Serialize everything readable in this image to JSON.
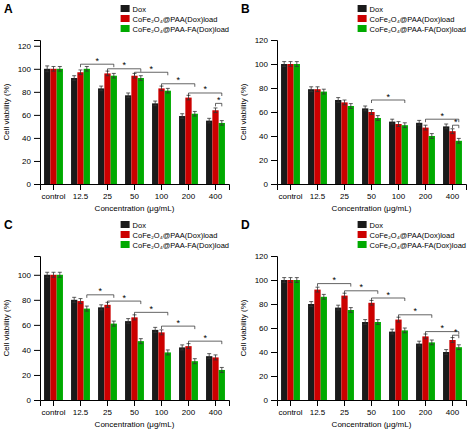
{
  "chart_data": [
    {
      "type": "bar",
      "title": "A",
      "ylabel": "Cell viability (%)",
      "xlabel": "Concentration (μg/mL)",
      "categories": [
        "control",
        "12.5",
        "25",
        "50",
        "100",
        "200",
        "400"
      ],
      "ylim": [
        0,
        125
      ],
      "yticks": [
        0,
        20,
        40,
        60,
        80,
        100,
        120
      ],
      "grid": false,
      "legend": "upper right",
      "series": [
        {
          "name": "Dox",
          "color": "#1a1a1a",
          "values": [
            100,
            92,
            83,
            77,
            70,
            59,
            55
          ],
          "errors": [
            2.5,
            2,
            2,
            2,
            2,
            2,
            2
          ]
        },
        {
          "name": "CoFe₂O₄@PAA(Dox)load",
          "color": "#cc0000",
          "values": [
            100,
            97,
            96,
            94,
            83,
            75,
            64
          ],
          "errors": [
            2,
            2,
            2,
            2,
            2,
            2,
            2
          ]
        },
        {
          "name": "CoFe₂O₄@PAA-FA(Dox)load",
          "color": "#00aa00",
          "values": [
            100,
            100,
            94,
            92,
            81,
            61,
            53
          ],
          "errors": [
            2,
            2,
            2,
            2,
            2,
            2,
            2
          ]
        }
      ],
      "annotations": [
        {
          "label": "*",
          "y": 104,
          "from_series": "CoFe₂O₄@PAA(Dox)load",
          "from_category": "12.5",
          "to_series": "CoFe₂O₄@PAA-FA(Dox)load",
          "to_category": "25"
        },
        {
          "label": "*",
          "y": 100,
          "from_series": "CoFe₂O₄@PAA(Dox)load",
          "from_category": "25",
          "to_series": "CoFe₂O₄@PAA-FA(Dox)load",
          "to_category": "50"
        },
        {
          "label": "*",
          "y": 97,
          "from_series": "CoFe₂O₄@PAA(Dox)load",
          "from_category": "50",
          "to_series": "CoFe₂O₄@PAA-FA(Dox)load",
          "to_category": "100"
        },
        {
          "label": "*",
          "y": 87,
          "from_series": "CoFe₂O₄@PAA(Dox)load",
          "from_category": "100",
          "to_series": "CoFe₂O₄@PAA-FA(Dox)load",
          "to_category": "200"
        },
        {
          "label": "*",
          "y": 79,
          "from_series": "CoFe₂O₄@PAA(Dox)load",
          "from_category": "200",
          "to_series": "CoFe₂O₄@PAA-FA(Dox)load",
          "to_category": "400"
        },
        {
          "label": "*",
          "y": 70,
          "from_series": "CoFe₂O₄@PAA(Dox)load",
          "from_category": "400",
          "to_series": "CoFe₂O₄@PAA-FA(Dox)load",
          "to_category": "400"
        }
      ]
    },
    {
      "type": "bar",
      "title": "B",
      "ylabel": "Cell viability (%)",
      "xlabel": "Concentration (μg/mL)",
      "categories": [
        "control",
        "12.5",
        "25",
        "50",
        "100",
        "200",
        "400"
      ],
      "ylim": [
        0,
        120
      ],
      "yticks": [
        0,
        20,
        40,
        60,
        80,
        100,
        120
      ],
      "grid": false,
      "legend": "upper right",
      "series": [
        {
          "name": "Dox",
          "color": "#1a1a1a",
          "values": [
            100,
            79,
            70,
            63,
            52,
            51,
            48
          ],
          "errors": [
            2,
            2,
            2,
            2,
            2,
            2,
            2
          ]
        },
        {
          "name": "CoFe₂O₄@PAA(Dox)load",
          "color": "#cc0000",
          "values": [
            100,
            79,
            68,
            60,
            50,
            47,
            44
          ],
          "errors": [
            2,
            2,
            2,
            2,
            2,
            2,
            2
          ]
        },
        {
          "name": "CoFe₂O₄@PAA-FA(Dox)load",
          "color": "#00aa00",
          "values": [
            100,
            77,
            65,
            55,
            49,
            40,
            36
          ],
          "errors": [
            2,
            2,
            2,
            2,
            2,
            2,
            2
          ]
        }
      ],
      "annotations": [
        {
          "label": "*",
          "y": 70,
          "from_series": "CoFe₂O₄@PAA(Dox)load",
          "from_category": "50",
          "to_series": "CoFe₂O₄@PAA-FA(Dox)load",
          "to_category": "100"
        },
        {
          "label": "*",
          "y": 54,
          "from_series": "CoFe₂O₄@PAA(Dox)load",
          "from_category": "200",
          "to_series": "CoFe₂O₄@PAA-FA(Dox)load",
          "to_category": "400"
        },
        {
          "label": "*",
          "y": 49,
          "from_series": "CoFe₂O₄@PAA(Dox)load",
          "from_category": "400",
          "to_series": "CoFe₂O₄@PAA-FA(Dox)load",
          "to_category": "400"
        }
      ]
    },
    {
      "type": "bar",
      "title": "C",
      "ylabel": "Cell viability (%)",
      "xlabel": "Concentration (μg/mL)",
      "categories": [
        "control",
        "12.5",
        "25",
        "50",
        "100",
        "200",
        "400"
      ],
      "ylim": [
        0,
        115
      ],
      "yticks": [
        0,
        20,
        40,
        60,
        80,
        100
      ],
      "grid": false,
      "legend": "upper right",
      "series": [
        {
          "name": "Dox",
          "color": "#1a1a1a",
          "values": [
            100,
            80,
            74,
            63,
            56,
            42,
            35
          ],
          "errors": [
            2,
            2,
            2,
            2,
            2,
            2,
            2
          ]
        },
        {
          "name": "CoFe₂O₄@PAA(Dox)load",
          "color": "#cc0000",
          "values": [
            100,
            79,
            76,
            66,
            54,
            43,
            34
          ],
          "errors": [
            2,
            2,
            2,
            2,
            2,
            2,
            2
          ]
        },
        {
          "name": "CoFe₂O₄@PAA-FA(Dox)load",
          "color": "#00aa00",
          "values": [
            100,
            73,
            61,
            47,
            38,
            31,
            24
          ],
          "errors": [
            2,
            2,
            2,
            2,
            2,
            2,
            2
          ]
        }
      ],
      "annotations": [
        {
          "label": "*",
          "y": 84,
          "from_series": "CoFe₂O₄@PAA-FA(Dox)load",
          "from_category": "12.5",
          "to_series": "CoFe₂O₄@PAA-FA(Dox)load",
          "to_category": "25"
        },
        {
          "label": "*",
          "y": 79,
          "from_series": "CoFe₂O₄@PAA(Dox)load",
          "from_category": "25",
          "to_series": "CoFe₂O₄@PAA-FA(Dox)load",
          "to_category": "50"
        },
        {
          "label": "*",
          "y": 70,
          "from_series": "CoFe₂O₄@PAA(Dox)load",
          "from_category": "50",
          "to_series": "CoFe₂O₄@PAA-FA(Dox)load",
          "to_category": "100"
        },
        {
          "label": "*",
          "y": 59,
          "from_series": "CoFe₂O₄@PAA(Dox)load",
          "from_category": "100",
          "to_series": "CoFe₂O₄@PAA-FA(Dox)load",
          "to_category": "200"
        },
        {
          "label": "*",
          "y": 47,
          "from_series": "CoFe₂O₄@PAA(Dox)load",
          "from_category": "200",
          "to_series": "CoFe₂O₄@PAA-FA(Dox)load",
          "to_category": "400"
        }
      ]
    },
    {
      "type": "bar",
      "title": "D",
      "ylabel": "Cell viability (%)",
      "xlabel": "Concentration (μg/mL)",
      "categories": [
        "control",
        "12.5",
        "25",
        "50",
        "100",
        "200",
        "400"
      ],
      "ylim": [
        0,
        120
      ],
      "yticks": [
        0,
        20,
        40,
        60,
        80,
        100,
        120
      ],
      "grid": false,
      "legend": "upper right",
      "series": [
        {
          "name": "Dox",
          "color": "#1a1a1a",
          "values": [
            100,
            80,
            77,
            65,
            57,
            47,
            40
          ],
          "errors": [
            2,
            2,
            2,
            2,
            2,
            2,
            2
          ]
        },
        {
          "name": "CoFe₂O₄@PAA(Dox)load",
          "color": "#cc0000",
          "values": [
            100,
            92,
            87,
            81,
            67,
            53,
            50
          ],
          "errors": [
            2,
            2,
            2,
            2,
            2,
            2,
            2
          ]
        },
        {
          "name": "CoFe₂O₄@PAA-FA(Dox)load",
          "color": "#00aa00",
          "values": [
            100,
            86,
            75,
            65,
            58,
            48,
            44
          ],
          "errors": [
            2,
            2,
            2,
            2,
            2,
            2,
            2
          ]
        }
      ],
      "annotations": [
        {
          "label": "*",
          "y": 97,
          "from_series": "CoFe₂O₄@PAA(Dox)load",
          "from_category": "12.5",
          "to_series": "CoFe₂O₄@PAA-FA(Dox)load",
          "to_category": "25"
        },
        {
          "label": "*",
          "y": 91,
          "from_series": "CoFe₂O₄@PAA(Dox)load",
          "from_category": "25",
          "to_series": "CoFe₂O₄@PAA-FA(Dox)load",
          "to_category": "50"
        },
        {
          "label": "*",
          "y": 85,
          "from_series": "CoFe₂O₄@PAA(Dox)load",
          "from_category": "50",
          "to_series": "CoFe₂O₄@PAA-FA(Dox)load",
          "to_category": "100"
        },
        {
          "label": "*",
          "y": 71,
          "from_series": "CoFe₂O₄@PAA(Dox)load",
          "from_category": "100",
          "to_series": "CoFe₂O₄@PAA-FA(Dox)load",
          "to_category": "200"
        },
        {
          "label": "*",
          "y": 57,
          "from_series": "CoFe₂O₄@PAA(Dox)load",
          "from_category": "200",
          "to_series": "CoFe₂O₄@PAA-FA(Dox)load",
          "to_category": "400"
        },
        {
          "label": "*",
          "y": 54,
          "from_series": "CoFe₂O₄@PAA(Dox)load",
          "from_category": "400",
          "to_series": "CoFe₂O₄@PAA-FA(Dox)load",
          "to_category": "400"
        }
      ]
    }
  ]
}
